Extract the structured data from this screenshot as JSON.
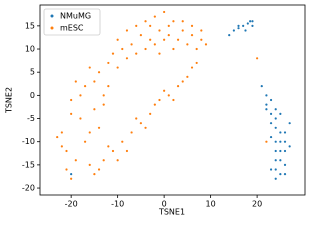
{
  "chart_data": {
    "type": "scatter",
    "xlabel": "TSNE1",
    "ylabel": "TSNE2",
    "xlim": [
      -26.7,
      30.3
    ],
    "ylim": [
      -21.5,
      19.5
    ],
    "xticks": [
      -20,
      -10,
      0,
      10,
      20
    ],
    "yticks": [
      -20,
      -15,
      -10,
      -5,
      0,
      5,
      10,
      15
    ],
    "legend": "upper left",
    "series": [
      {
        "name": "NMuMG",
        "color": "#1f77b4",
        "x": [
          14,
          15,
          16,
          17,
          18,
          19,
          17.5,
          18.5,
          16,
          19,
          21,
          22,
          22,
          23,
          23,
          24,
          24,
          25,
          24,
          25,
          24,
          23,
          24,
          25,
          26,
          26,
          25,
          26,
          27,
          25,
          24,
          23,
          22,
          26,
          25,
          24,
          26,
          27,
          23,
          24,
          -20
        ],
        "y": [
          13,
          14,
          14.5,
          15,
          15.5,
          16,
          14,
          16,
          15,
          15,
          2,
          0,
          -2,
          -4,
          -1,
          -5,
          -7,
          -8,
          -10,
          -12,
          -14,
          -16,
          -18,
          -17,
          -15,
          -12,
          -10,
          -8,
          -6,
          -4,
          -3,
          -6,
          -3,
          -10,
          -14,
          -16,
          -17,
          -11,
          -9,
          -12,
          -17
        ]
      },
      {
        "name": "mESC",
        "color": "#ff7f0e",
        "x": [
          -8,
          -6,
          -4,
          -2,
          0,
          2,
          4,
          6,
          8,
          9,
          -10,
          -9,
          -7,
          -5,
          -3,
          -1,
          1,
          3,
          5,
          7,
          -11,
          -12,
          -10,
          -8,
          -6,
          -4,
          -2,
          0,
          2,
          -3,
          1,
          4,
          -1,
          6,
          8,
          -14,
          -16,
          -18,
          -20,
          -22,
          -21,
          -19,
          -15,
          -13,
          -16,
          -14,
          -18,
          -20,
          -22,
          -17,
          -15,
          -13,
          -12,
          -19,
          -23,
          -21,
          -20,
          -17,
          -16,
          -15,
          -13,
          -11,
          -9,
          -7,
          -5,
          -3,
          -1,
          1,
          3,
          5,
          6,
          -8,
          -10,
          -12,
          -6,
          -4,
          0,
          2,
          4,
          7,
          -14,
          -2,
          22,
          20
        ],
        "y": [
          14,
          15,
          16,
          17,
          18,
          16,
          14,
          13,
          12,
          11,
          12,
          10,
          11,
          13,
          12,
          14,
          13,
          12,
          11,
          10,
          9,
          7,
          6,
          8,
          9,
          10,
          11,
          12,
          10,
          15,
          15,
          16,
          9,
          15,
          14,
          5,
          6,
          0,
          -1,
          -8,
          -12,
          -14,
          -3,
          -2,
          -8,
          -7,
          -5,
          -4,
          -11,
          2,
          3,
          0,
          2,
          3,
          -9,
          -16,
          -18,
          -10,
          -15,
          -17,
          -14,
          -12,
          -10,
          -8,
          -6,
          -4,
          -1,
          0,
          2,
          4,
          6,
          -12,
          -14,
          -11,
          -5,
          -7,
          1,
          -1,
          3,
          7,
          -16,
          -2,
          -10,
          8
        ]
      }
    ]
  }
}
